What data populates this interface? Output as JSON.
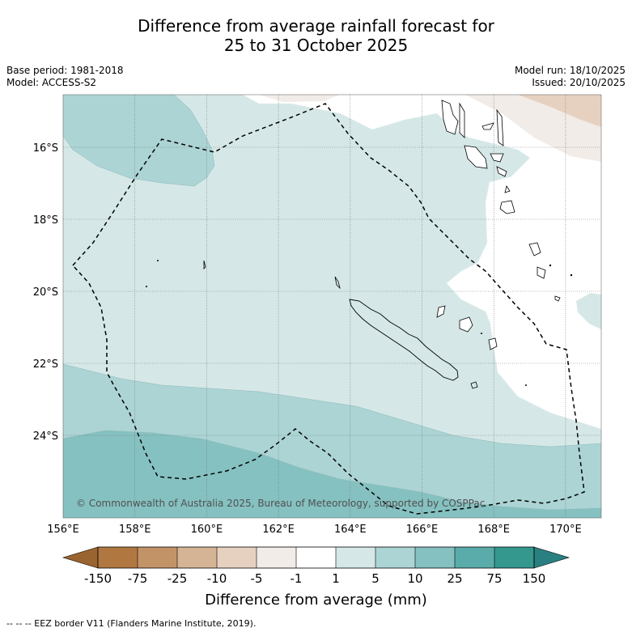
{
  "title": {
    "line1": "Difference from average rainfall forecast for",
    "line2": "25 to 31 October 2025"
  },
  "meta": {
    "base_period": "Base period: 1981-2018",
    "model": "Model: ACCESS-S2",
    "model_run": "Model run: 18/10/2025",
    "issued": "Issued: 20/10/2025"
  },
  "axes": {
    "lat_labels": [
      "16°S",
      "18°S",
      "20°S",
      "22°S",
      "24°S"
    ],
    "lon_labels": [
      "156°E",
      "158°E",
      "160°E",
      "162°E",
      "164°E",
      "166°E",
      "168°E",
      "170°E"
    ]
  },
  "copyright": "© Commonwealth of Australia 2025, Bureau of Meteorology, supported by COSPPac",
  "colorbar": {
    "title": "Difference from average (mm)",
    "tick_labels": [
      "-150",
      "-75",
      "-25",
      "-10",
      "-5",
      "-1",
      "1",
      "5",
      "10",
      "25",
      "75",
      "150"
    ],
    "colors": {
      "lt_neg150": "#9a6430",
      "neg150_neg75": "#b07840",
      "neg75_neg25": "#c39368",
      "neg25_neg10": "#d5b496",
      "neg10_neg5": "#e6d1c0",
      "neg5_neg1": "#f2ece8",
      "neg1_1": "#ffffff",
      "1_5": "#d5e8e7",
      "5_10": "#acd4d4",
      "10_25": "#85c1c0",
      "25_75": "#5aacab",
      "75_150": "#34988f",
      "gt_150": "#2a8080"
    }
  },
  "footnote": "--  --  -- EEZ border V11 (Flanders Marine Institute, 2019)."
}
